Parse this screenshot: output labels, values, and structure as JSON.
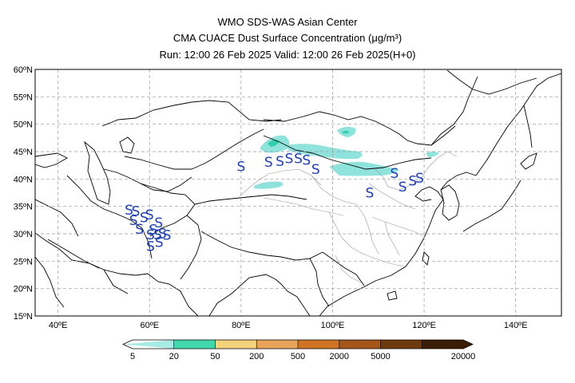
{
  "header": {
    "line1": "WMO SDS-WAS Asian Center",
    "line2": "CMA CUACE Dust Surface Concentration (μg/m³)",
    "line3": "Run: 12:00 26 Feb 2025    Valid: 12:00 26 Feb 2025(H+0)"
  },
  "map": {
    "lon_range": [
      35,
      150
    ],
    "lat_range": [
      15,
      60
    ],
    "lat_labels": [
      "15ºN",
      "20ºN",
      "25ºN",
      "30ºN",
      "35ºN",
      "40ºN",
      "45ºN",
      "50ºN",
      "55ºN",
      "60ºN"
    ],
    "lat_values": [
      15,
      20,
      25,
      30,
      35,
      40,
      45,
      50,
      55,
      60
    ],
    "lon_labels": [
      "40ºE",
      "60ºE",
      "80ºE",
      "100ºE",
      "120ºE",
      "140ºE"
    ],
    "lon_values": [
      40,
      60,
      80,
      100,
      120,
      140
    ],
    "grid": true,
    "dust_symbol": "S",
    "dust_symbol_color": "#1f3fb8",
    "dust_stations": [
      [
        55.5,
        33.5
      ],
      [
        57.0,
        33.3
      ],
      [
        60.0,
        32.6
      ],
      [
        56.5,
        31.6
      ],
      [
        58.8,
        32.1
      ],
      [
        62.0,
        31.2
      ],
      [
        57.8,
        30.0
      ],
      [
        60.8,
        29.9
      ],
      [
        62.8,
        29.2
      ],
      [
        60.2,
        29.0
      ],
      [
        61.8,
        29.0
      ],
      [
        63.8,
        28.9
      ],
      [
        60.2,
        26.9
      ],
      [
        62.1,
        27.6
      ],
      [
        80.0,
        41.4
      ],
      [
        86.0,
        42.2
      ],
      [
        88.5,
        42.4
      ],
      [
        90.5,
        42.9
      ],
      [
        92.5,
        42.9
      ],
      [
        94.3,
        42.6
      ],
      [
        96.3,
        40.9
      ],
      [
        108.1,
        36.6
      ],
      [
        113.5,
        40.2
      ],
      [
        115.3,
        37.7
      ],
      [
        117.5,
        38.8
      ],
      [
        119.0,
        39.3
      ]
    ],
    "concentration_color": "#8fe3dc",
    "concentration_dark_color": "#2fcfae"
  },
  "legend": {
    "labels": [
      "5",
      "20",
      "50",
      "200",
      "500",
      "2000",
      "5000",
      "20000"
    ],
    "colors": [
      "#a7ece4",
      "#41d8ac",
      "#f4d27c",
      "#e8a55a",
      "#cf7424",
      "#a5561b",
      "#6f3910",
      "#3a1e08"
    ]
  }
}
